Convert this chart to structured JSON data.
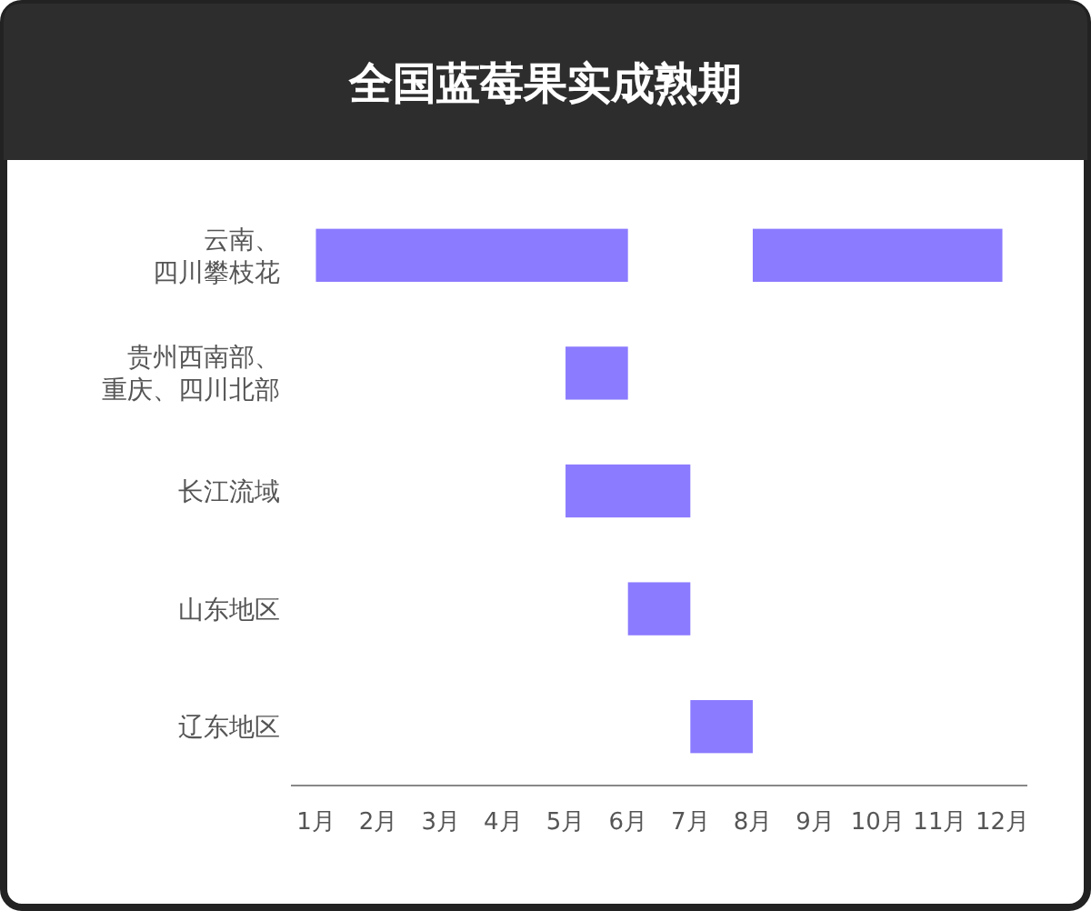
{
  "chart_data": {
    "type": "bar",
    "orientation": "horizontal",
    "title": "全国蓝莓果实成熟期",
    "categories": [
      "云南、四川攀枝花",
      "贵州西南部、重庆、四川北部",
      "长江流域",
      "山东地区",
      "辽东地区"
    ],
    "series": [
      {
        "color": "#8b7bff",
        "base": [
          1,
          5,
          5,
          6,
          7
        ],
        "values": [
          5,
          1,
          2,
          1,
          1
        ]
      },
      {
        "color": "#8b7bff",
        "base": [
          8,
          null,
          null,
          null,
          null
        ],
        "values": [
          4,
          null,
          null,
          null,
          null
        ]
      }
    ],
    "xlim": [
      0.6,
      12.4
    ],
    "xticks": [
      {
        "value": 1,
        "label": "1月"
      },
      {
        "value": 2,
        "label": "2月"
      },
      {
        "value": 3,
        "label": "3月"
      },
      {
        "value": 4,
        "label": "4月"
      },
      {
        "value": 5,
        "label": "5月"
      },
      {
        "value": 6,
        "label": "6月"
      },
      {
        "value": 7,
        "label": "7月"
      },
      {
        "value": 8,
        "label": "8月"
      },
      {
        "value": 9,
        "label": "9月"
      },
      {
        "value": 10,
        "label": "10月"
      },
      {
        "value": 11,
        "label": "11月"
      },
      {
        "value": 12,
        "label": "12月"
      }
    ]
  }
}
